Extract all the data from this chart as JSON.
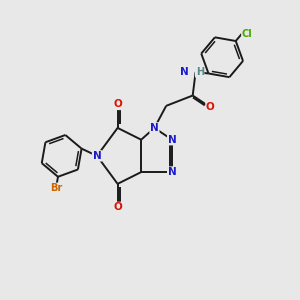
{
  "bg_color": "#e8e8e8",
  "bond_color": "#1a1a1a",
  "bond_lw": 1.4,
  "aromatic_lw": 1.1,
  "atom_colors": {
    "N": "#1a1acc",
    "O": "#dd1100",
    "Br": "#cc6600",
    "Cl": "#44aa00",
    "H": "#558888",
    "C": "#1a1a1a"
  },
  "atom_fontsizes": {
    "N": 7.5,
    "O": 7.5,
    "Br": 7.0,
    "Cl": 7.0,
    "NH": 7.0,
    "C": 6.5
  }
}
